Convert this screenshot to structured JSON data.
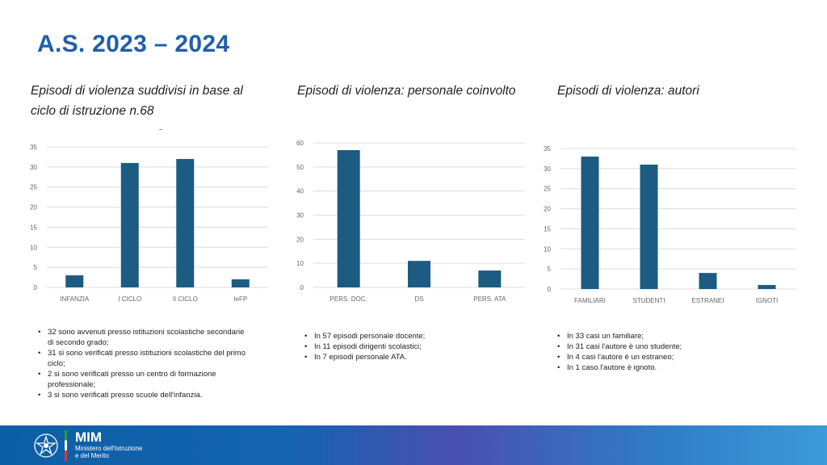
{
  "title": "A.S. 2023 – 2024",
  "colors": {
    "title": "#1f5fae",
    "bar": "#1c5b82",
    "grid": "#dcdcdc",
    "axis_text": "#666666"
  },
  "subtitles": {
    "ciclo_line1": "Episodi di violenza suddivisi in base al",
    "ciclo_line2": "ciclo di istruzione n.68",
    "personale": "Episodi di violenza: personale coinvolto",
    "autori": "Episodi di violenza: autori"
  },
  "chart_data": [
    {
      "type": "bar",
      "title": "Episodi di violenza suddivisi in base al ciclo di istruzione n.68",
      "categories": [
        "INFANZIA",
        "I CICLO",
        "II CICLO",
        "IeFP"
      ],
      "values": [
        3,
        31,
        32,
        2
      ],
      "yticks": [
        "0",
        "5",
        "10",
        "15",
        "20",
        "25",
        "30",
        "35"
      ],
      "ylim": [
        0,
        35
      ],
      "grid": true
    },
    {
      "type": "bar",
      "title": "Episodi di violenza: personale coinvolto",
      "categories": [
        "PERS. DOC.",
        "DS",
        "PERS. ATA"
      ],
      "values": [
        57,
        11,
        7
      ],
      "yticks": [
        "0",
        "10",
        "20",
        "30",
        "40",
        "50",
        "60"
      ],
      "ylim": [
        0,
        60
      ],
      "grid": true
    },
    {
      "type": "bar",
      "title": "Episodi di violenza: autori",
      "categories": [
        "FAMILIARI",
        "STUDENTI",
        "ESTRANEI",
        "IGNOTI"
      ],
      "values": [
        33,
        31,
        4,
        1
      ],
      "yticks": [
        "0",
        "5",
        "10",
        "15",
        "20",
        "25",
        "30",
        "35"
      ],
      "ylim": [
        0,
        35
      ],
      "grid": true
    }
  ],
  "notes": {
    "ciclo": [
      "32 sono avvenuti presso istituzioni scolastiche secondarie di secondo grado;",
      "31 si sono verificati presso istituzioni scolastiche del primo ciclo;",
      "2 si sono verificati presso un centro di formazione professionale;",
      "3 si sono verificati presso scuole dell'infanzia."
    ],
    "personale": [
      "In 57 episodi personale docente;",
      "In 11 episodi dirigenti scolastici;",
      "In 7 episodi personale ATA."
    ],
    "autori": [
      "In 33 casi un familiare;",
      "In 31 casi l'autore è uno studente;",
      "In 4 casi l'autore è un estraneo;",
      "In 1 caso l'autore è ignoto."
    ]
  },
  "footer": {
    "logo": "MIM",
    "line1": "Ministero dell'Istruzione",
    "line2": "e del Merito"
  }
}
